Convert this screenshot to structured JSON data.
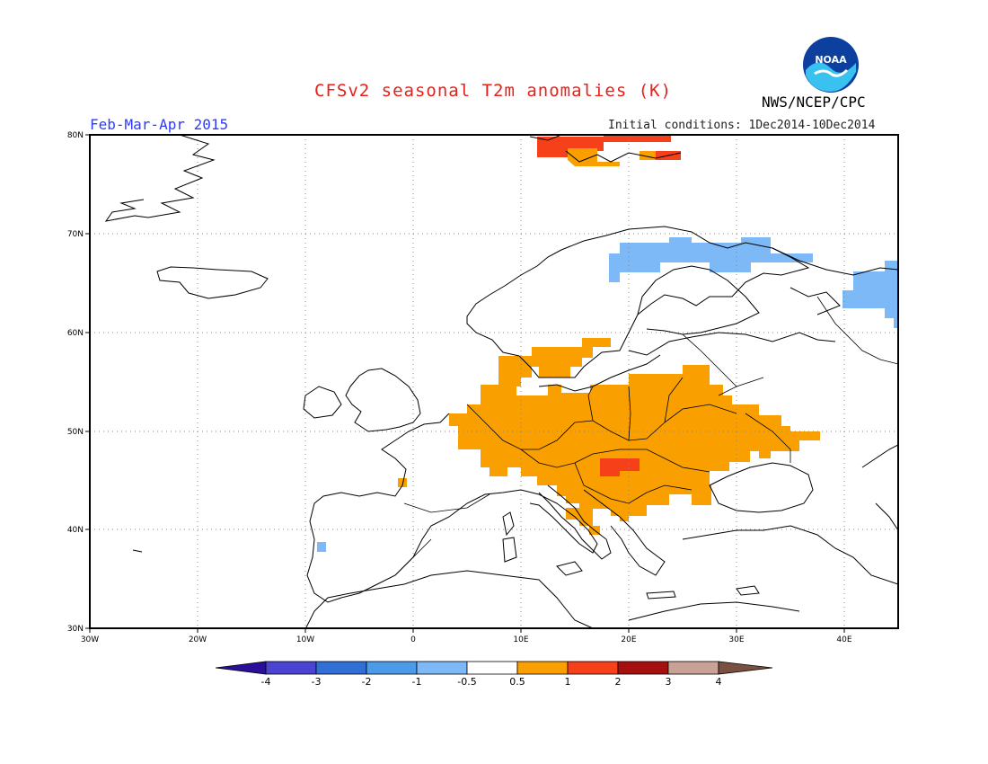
{
  "header": {
    "title": "CFSv2 seasonal T2m anomalies (K)",
    "organization": "NWS/NCEP/CPC",
    "period": "Feb-Mar-Apr 2015",
    "initial_conditions": "Initial conditions: 1Dec2014-10Dec2014"
  },
  "logo": {
    "icon": "noaa-logo-icon",
    "text": "NOAA"
  },
  "map": {
    "lat_labels": [
      "80N",
      "70N",
      "60N",
      "50N",
      "40N",
      "30N"
    ],
    "lon_labels": [
      "30W",
      "20W",
      "10W",
      "0",
      "10E",
      "20E",
      "30E",
      "40E"
    ]
  },
  "colorbar": {
    "labels": [
      "-4",
      "-3",
      "-2",
      "-1",
      "-0.5",
      "0.5",
      "1",
      "2",
      "3",
      "4"
    ],
    "colors": [
      "#2a0f98",
      "#4b44d2",
      "#2f6fd6",
      "#4b9be8",
      "#7db9f7",
      "#ffffff",
      "#f9a000",
      "#f5401a",
      "#a50f10",
      "#c8a296",
      "#7a5040"
    ]
  },
  "anomaly_colors": {
    "orange": "#f9a000",
    "red": "#f5401a",
    "lightblue": "#7db9f7"
  }
}
